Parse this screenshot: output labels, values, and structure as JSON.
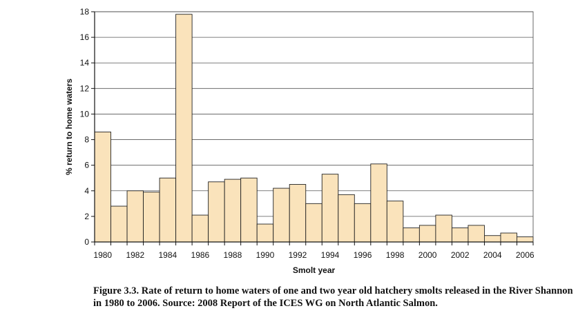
{
  "chart_data": {
    "type": "bar",
    "categories": [
      "1980",
      "1981",
      "1982",
      "1983",
      "1984",
      "1985",
      "1986",
      "1987",
      "1988",
      "1989",
      "1990",
      "1991",
      "1992",
      "1993",
      "1994",
      "1995",
      "1996",
      "1997",
      "1998",
      "1999",
      "2000",
      "2001",
      "2002",
      "2003",
      "2004",
      "2005",
      "2006"
    ],
    "values": [
      8.6,
      2.8,
      4.0,
      3.9,
      5.0,
      17.8,
      2.1,
      4.7,
      4.9,
      5.0,
      1.4,
      4.2,
      4.5,
      3.0,
      5.3,
      3.7,
      3.0,
      6.1,
      3.2,
      1.1,
      1.3,
      2.1,
      1.1,
      1.3,
      0.5,
      0.7,
      0.4
    ],
    "x_tick_labels": [
      "1980",
      "1982",
      "1984",
      "1986",
      "1988",
      "1990",
      "1992",
      "1994",
      "1996",
      "1998",
      "2000",
      "2002",
      "2004",
      "2006"
    ],
    "y_ticks": [
      0,
      2,
      4,
      6,
      8,
      10,
      12,
      14,
      16,
      18
    ],
    "ylim": [
      0,
      18
    ],
    "xlabel": "Smolt year",
    "ylabel": "% return to home waters",
    "grid": true,
    "bar_color": "#fae3bb",
    "bar_edge_color": "#222222"
  },
  "caption": "Figure 3.3.  Rate of return to home waters of one and two year old hatchery smolts released in the River Shannon in 1980 to 2006.  Source: 2008 Report of the ICES WG on North Atlantic Salmon."
}
